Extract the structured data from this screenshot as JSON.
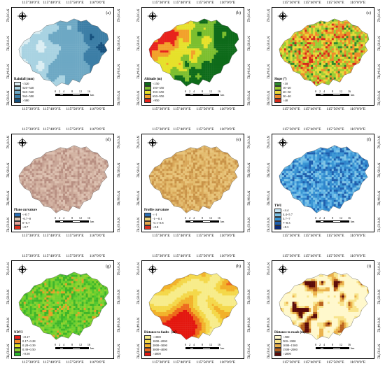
{
  "longitude_labels": [
    "115°30′0″E",
    "115°40′0″E",
    "115°50′0″E",
    "116°0′0″E"
  ],
  "latitude_labels": [
    "N″0′0°62",
    "N″0′05°82",
    "N″0′04°82",
    "N″0′03°82"
  ],
  "scale": {
    "ticks": [
      "0",
      "2",
      "4",
      "8",
      "12",
      "16"
    ],
    "unit": "km"
  },
  "panels": [
    {
      "id": "a",
      "label": "(a)",
      "legend_title": "Rainfall (mm)",
      "legend": [
        {
          "text": "<520",
          "color": "#dbeef3"
        },
        {
          "text": "520~540",
          "color": "#a9d3e2"
        },
        {
          "text": "540~560",
          "color": "#6da8c4"
        },
        {
          "text": "560~580",
          "color": "#3c7ea6"
        },
        {
          "text": ">580",
          "color": "#15507d"
        }
      ],
      "palette": [
        "#dbeef3",
        "#a9d3e2",
        "#6da8c4",
        "#3c7ea6",
        "#15507d"
      ],
      "style": "west-east"
    },
    {
      "id": "b",
      "label": "(b)",
      "legend_title": "Altitude (m)",
      "legend": [
        {
          "text": "<150",
          "color": "#0e6b1a"
        },
        {
          "text": "150~350",
          "color": "#7cbf2e"
        },
        {
          "text": "350~650",
          "color": "#e6e12a"
        },
        {
          "text": "650~950",
          "color": "#f2a12a"
        },
        {
          "text": ">950",
          "color": "#e8221c"
        }
      ],
      "palette": [
        "#0e6b1a",
        "#7cbf2e",
        "#e6e12a",
        "#f2a12a",
        "#e8221c"
      ],
      "style": "altitude"
    },
    {
      "id": "c",
      "label": "(c)",
      "legend_title": "Slope (°)",
      "legend": [
        {
          "text": "<10",
          "color": "#2e8b2e"
        },
        {
          "text": "10~20",
          "color": "#9acd32"
        },
        {
          "text": "20~30",
          "color": "#e8d93a"
        },
        {
          "text": "30~40",
          "color": "#ef8a2a"
        },
        {
          "text": ">40",
          "color": "#d42a1c"
        }
      ],
      "palette": [
        "#2e8b2e",
        "#9acd32",
        "#e8d93a",
        "#ef8a2a",
        "#d42a1c"
      ],
      "style": "noise-mid"
    },
    {
      "id": "d",
      "label": "(d)",
      "legend_title": "Plane curvature",
      "legend": [
        {
          "text": "<-0.7",
          "color": "#2b6fb5"
        },
        {
          "text": "-0.7~0",
          "color": "#d9c3b0"
        },
        {
          "text": "0~0.7",
          "color": "#e7a39a"
        },
        {
          "text": ">0.7",
          "color": "#d7301f"
        }
      ],
      "palette": [
        "#c8a596",
        "#d3b3a2",
        "#b88f82",
        "#dcc0b0"
      ],
      "style": "noise-fine"
    },
    {
      "id": "e",
      "label": "(e)",
      "legend_title": "Profile curvature",
      "legend": [
        {
          "text": "<-1",
          "color": "#2b6fb5"
        },
        {
          "text": "-1~-0.1",
          "color": "#e9d27a"
        },
        {
          "text": "-0.1~0.8",
          "color": "#e6a84a"
        },
        {
          "text": ">0.8",
          "color": "#d7301f"
        }
      ],
      "palette": [
        "#d9a85a",
        "#e3bc6e",
        "#c99348",
        "#e8c47a"
      ],
      "style": "noise-fine"
    },
    {
      "id": "f",
      "label": "(f)",
      "legend_title": "TWI",
      "legend": [
        {
          "text": "<4.4",
          "color": "#c6e4f2"
        },
        {
          "text": "4.4~5.7",
          "color": "#7fc4e6"
        },
        {
          "text": "5.7~7",
          "color": "#3a96d4"
        },
        {
          "text": "7~8.3",
          "color": "#1f5fae"
        },
        {
          "text": ">8.3",
          "color": "#0b2a7a"
        }
      ],
      "palette": [
        "#5fb3e6",
        "#3a96d4",
        "#2f84cc",
        "#7fc4e6",
        "#1f5fae"
      ],
      "style": "noise-fine"
    },
    {
      "id": "g",
      "label": "(g)",
      "legend_title": "NDVI",
      "legend": [
        {
          "text": "<0.17",
          "color": "#e8221c"
        },
        {
          "text": "0.17~0.28",
          "color": "#f28a2a"
        },
        {
          "text": "0.28~0.39",
          "color": "#e6e12a"
        },
        {
          "text": "0.39~0.50",
          "color": "#8fd12e"
        },
        {
          "text": ">0.50",
          "color": "#2bb52b"
        }
      ],
      "palette": [
        "#52c72f",
        "#6fd02e",
        "#3eb52a",
        "#8fd12e",
        "#e6a22a"
      ],
      "style": "noise-mid"
    },
    {
      "id": "h",
      "label": "(h)",
      "legend_title": "Distance to faults（m）",
      "legend": [
        {
          "text": "<1000",
          "color": "#f7ec8a"
        },
        {
          "text": "1000~2000",
          "color": "#f4d84a"
        },
        {
          "text": "2000~3000",
          "color": "#f2b12a"
        },
        {
          "text": "3000~4000",
          "color": "#ee6a1c"
        },
        {
          "text": ">4000",
          "color": "#e3170f"
        }
      ],
      "palette": [
        "#e3170f",
        "#ee6a1c",
        "#f2b12a",
        "#f4d84a",
        "#f7ec8a"
      ],
      "style": "faults"
    },
    {
      "id": "i",
      "label": "(i)",
      "legend_title": "Distance to roads (m)",
      "legend": [
        {
          "text": "<500",
          "color": "#fff8cc"
        },
        {
          "text": "500~1000",
          "color": "#f8e38a"
        },
        {
          "text": "1000~1500",
          "color": "#eab04a"
        },
        {
          "text": "1500~2000",
          "color": "#b8601c"
        },
        {
          "text": ">2000",
          "color": "#5a0a08"
        }
      ],
      "palette": [
        "#fff8cc",
        "#f8e38a",
        "#eab04a",
        "#b8601c",
        "#5a0a08"
      ],
      "style": "roads"
    }
  ]
}
